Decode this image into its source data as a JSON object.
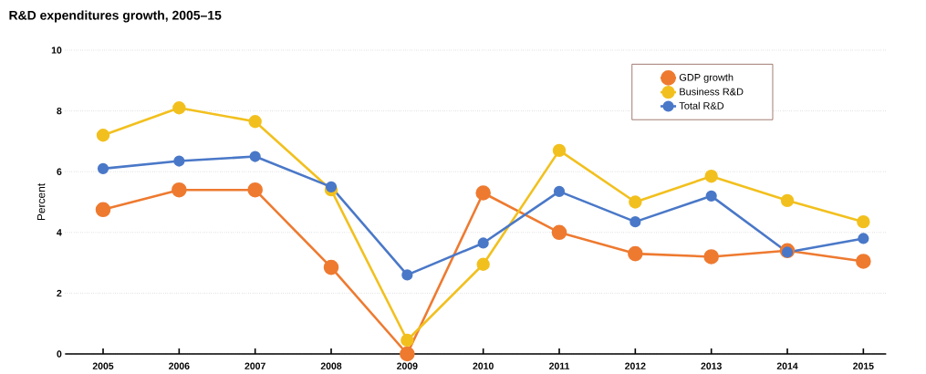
{
  "chart_data": {
    "type": "line",
    "title": "R&D expenditures growth, 2005–15",
    "ylabel": "Percent",
    "categories": [
      "2005",
      "2006",
      "2007",
      "2008",
      "2009",
      "2010",
      "2011",
      "2012",
      "2013",
      "2014",
      "2015"
    ],
    "series": [
      {
        "name": "GDP growth",
        "color": "#ee7a30",
        "values": [
          4.75,
          5.4,
          5.4,
          2.85,
          0,
          5.3,
          4.0,
          3.3,
          3.2,
          3.4,
          3.05
        ]
      },
      {
        "name": "Business R&D",
        "color": "#f2c01e",
        "values": [
          7.2,
          8.1,
          7.65,
          5.4,
          0.45,
          2.95,
          6.7,
          5.0,
          5.85,
          5.05,
          4.35
        ]
      },
      {
        "name": "Total R&D",
        "color": "#4a78c8",
        "values": [
          6.1,
          6.35,
          6.5,
          5.5,
          2.6,
          3.65,
          5.35,
          4.35,
          5.2,
          3.35,
          3.8
        ]
      }
    ],
    "ylim": [
      0,
      10
    ],
    "yticks": [
      0,
      2,
      4,
      6,
      8,
      10
    ],
    "grid": "y",
    "legend": "top right",
    "marker": "circle",
    "line_style": "solid"
  }
}
